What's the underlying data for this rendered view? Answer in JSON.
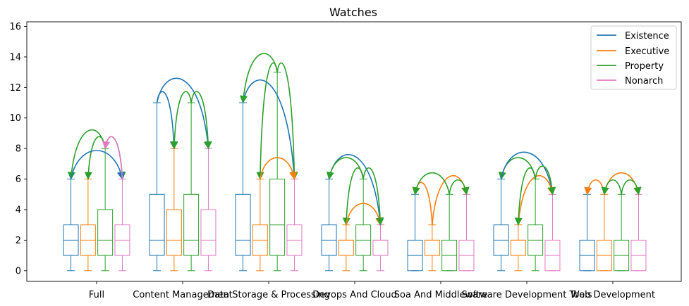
{
  "chart_data": {
    "type": "boxplot",
    "title": "Watches",
    "xlabel": "",
    "ylabel": "",
    "ylim": [
      -0.7,
      16.3
    ],
    "yticks": [
      0,
      2,
      4,
      6,
      8,
      10,
      12,
      14,
      16
    ],
    "categories": [
      "Full",
      "Content Management",
      "Data Storage & Processing",
      "Devops And Cloud",
      "Soa And Middleware",
      "Software Development Tools",
      "Web Development"
    ],
    "legend_position": "top-right",
    "series": [
      {
        "name": "Existence",
        "color": "#1f77b4",
        "boxes": [
          {
            "whislo": 0,
            "q1": 1,
            "med": 2,
            "q3": 3,
            "whishi": 6
          },
          {
            "whislo": 0,
            "q1": 1,
            "med": 2,
            "q3": 5,
            "whishi": 11
          },
          {
            "whislo": 0,
            "q1": 1,
            "med": 2,
            "q3": 5,
            "whishi": 11
          },
          {
            "whislo": 0,
            "q1": 1,
            "med": 2,
            "q3": 3,
            "whishi": 6
          },
          {
            "whislo": 0,
            "q1": 0,
            "med": 1,
            "q3": 2,
            "whishi": 5
          },
          {
            "whislo": 0,
            "q1": 1,
            "med": 2,
            "q3": 3,
            "whishi": 6
          },
          {
            "whislo": 0,
            "q1": 0,
            "med": 1,
            "q3": 2,
            "whishi": 5
          }
        ]
      },
      {
        "name": "Executive",
        "color": "#ff7f0e",
        "boxes": [
          {
            "whislo": 0,
            "q1": 1,
            "med": 2,
            "q3": 3,
            "whishi": 6
          },
          {
            "whislo": 0,
            "q1": 1,
            "med": 2,
            "q3": 4,
            "whishi": 8
          },
          {
            "whislo": 0,
            "q1": 1,
            "med": 2,
            "q3": 3,
            "whishi": 6
          },
          {
            "whislo": 0,
            "q1": 1,
            "med": 2,
            "q3": 2,
            "whishi": 3
          },
          {
            "whislo": 0,
            "q1": 1,
            "med": 2,
            "q3": 2,
            "whishi": 3
          },
          {
            "whislo": 0,
            "q1": 1,
            "med": 2,
            "q3": 2,
            "whishi": 3
          },
          {
            "whislo": 0,
            "q1": 0,
            "med": 1,
            "q3": 2,
            "whishi": 5
          }
        ]
      },
      {
        "name": "Property",
        "color": "#2ca02c",
        "boxes": [
          {
            "whislo": 0,
            "q1": 1,
            "med": 2,
            "q3": 4,
            "whishi": 8
          },
          {
            "whislo": 0,
            "q1": 1,
            "med": 2,
            "q3": 5,
            "whishi": 11
          },
          {
            "whislo": 0,
            "q1": 1,
            "med": 3,
            "q3": 6,
            "whishi": 13
          },
          {
            "whislo": 0,
            "q1": 1,
            "med": 2,
            "q3": 3,
            "whishi": 6
          },
          {
            "whislo": 0,
            "q1": 0,
            "med": 1,
            "q3": 2,
            "whishi": 5
          },
          {
            "whislo": 0,
            "q1": 1,
            "med": 2,
            "q3": 3,
            "whishi": 6
          },
          {
            "whislo": 0,
            "q1": 0,
            "med": 1,
            "q3": 2,
            "whishi": 5
          }
        ]
      },
      {
        "name": "Nonarch",
        "color": "#e377c2",
        "boxes": [
          {
            "whislo": 0,
            "q1": 1,
            "med": 2,
            "q3": 3,
            "whishi": 6
          },
          {
            "whislo": 0,
            "q1": 1,
            "med": 2,
            "q3": 4,
            "whishi": 8
          },
          {
            "whislo": 0,
            "q1": 1,
            "med": 2,
            "q3": 3,
            "whishi": 6
          },
          {
            "whislo": 0,
            "q1": 1,
            "med": 2,
            "q3": 2,
            "whishi": 3
          },
          {
            "whislo": 0,
            "q1": 0,
            "med": 1,
            "q3": 2,
            "whishi": 5
          },
          {
            "whislo": 0,
            "q1": 0,
            "med": 1,
            "q3": 2,
            "whishi": 5
          },
          {
            "whislo": 0,
            "q1": 0,
            "med": 1,
            "q3": 2,
            "whishi": 5
          }
        ]
      }
    ],
    "arrows": [
      {
        "category": 0,
        "from": 2,
        "to": 0
      },
      {
        "category": 0,
        "from": 2,
        "to": 1
      },
      {
        "category": 0,
        "from": 2,
        "to": 3
      },
      {
        "category": 0,
        "from": 0,
        "to": 3
      },
      {
        "category": 0,
        "from": 3,
        "to": 2
      },
      {
        "category": 1,
        "from": 0,
        "to": 1
      },
      {
        "category": 1,
        "from": 0,
        "to": 3
      },
      {
        "category": 1,
        "from": 2,
        "to": 1
      },
      {
        "category": 1,
        "from": 2,
        "to": 3
      },
      {
        "category": 2,
        "from": 0,
        "to": 3
      },
      {
        "category": 2,
        "from": 2,
        "to": 0
      },
      {
        "category": 2,
        "from": 2,
        "to": 1
      },
      {
        "category": 2,
        "from": 2,
        "to": 3
      },
      {
        "category": 2,
        "from": 1,
        "to": 3
      },
      {
        "category": 3,
        "from": 0,
        "to": 3
      },
      {
        "category": 3,
        "from": 2,
        "to": 0
      },
      {
        "category": 3,
        "from": 2,
        "to": 1
      },
      {
        "category": 3,
        "from": 1,
        "to": 3
      },
      {
        "category": 3,
        "from": 2,
        "to": 3
      },
      {
        "category": 4,
        "from": 1,
        "to": 0
      },
      {
        "category": 4,
        "from": 1,
        "to": 3
      },
      {
        "category": 4,
        "from": 2,
        "to": 0
      },
      {
        "category": 4,
        "from": 2,
        "to": 3
      },
      {
        "category": 5,
        "from": 2,
        "to": 0
      },
      {
        "category": 5,
        "from": 0,
        "to": 3
      },
      {
        "category": 5,
        "from": 1,
        "to": 3
      },
      {
        "category": 5,
        "from": 2,
        "to": 3
      },
      {
        "category": 5,
        "from": 2,
        "to": 1
      },
      {
        "category": 6,
        "from": 1,
        "to": 0
      },
      {
        "category": 6,
        "from": 1,
        "to": 3
      },
      {
        "category": 6,
        "from": 2,
        "to": 1
      },
      {
        "category": 6,
        "from": 2,
        "to": 3
      }
    ]
  }
}
